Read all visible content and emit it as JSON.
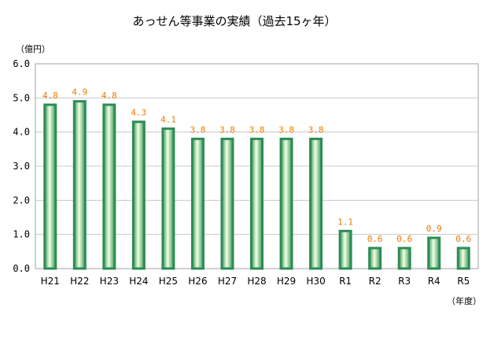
{
  "chart_data": {
    "type": "bar",
    "title": "あっせん等事業の実績（過去15ヶ年）",
    "ylabel": "（億円）",
    "xlabel": "（年度）",
    "ylim": [
      0,
      6
    ],
    "yticks": [
      "0.0",
      "1.0",
      "2.0",
      "3.0",
      "4.0",
      "5.0",
      "6.0"
    ],
    "categories": [
      "H21",
      "H22",
      "H23",
      "H24",
      "H25",
      "H26",
      "H27",
      "H28",
      "H29",
      "H30",
      "R1",
      "R2",
      "R3",
      "R4",
      "R5"
    ],
    "values": [
      4.8,
      4.9,
      4.8,
      4.3,
      4.1,
      3.8,
      3.8,
      3.8,
      3.8,
      3.8,
      1.1,
      0.6,
      0.6,
      0.9,
      0.6
    ],
    "value_labels": [
      "4.8",
      "4.9",
      "4.8",
      "4.3",
      "4.1",
      "3.8",
      "3.8",
      "3.8",
      "3.8",
      "3.8",
      "1.1",
      "0.6",
      "0.6",
      "0.9",
      "0.6"
    ],
    "grid": true,
    "colors": {
      "bar_edge": "#2e8b57",
      "bar_center": "#f0ffe8",
      "label": "#f07800",
      "grid": "#c8c8c8"
    }
  }
}
